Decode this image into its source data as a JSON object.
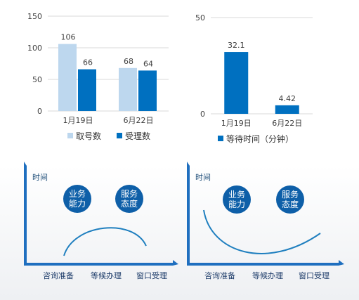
{
  "chart_data": [
    {
      "type": "bar",
      "categories": [
        "1月19日",
        "6月22日"
      ],
      "series": [
        {
          "name": "取号数",
          "values": [
            106,
            68
          ],
          "color": "#bdd7ee"
        },
        {
          "name": "受理数",
          "values": [
            66,
            64
          ],
          "color": "#0070c0"
        }
      ],
      "yticks": [
        0,
        50,
        100,
        150
      ],
      "ylim": [
        0,
        150
      ],
      "grid": true,
      "legend": "bottom"
    },
    {
      "type": "bar",
      "categories": [
        "1月19日",
        "6月22日"
      ],
      "series": [
        {
          "name": "等待时间（分钟）",
          "values": [
            32.1,
            4.42
          ],
          "color": "#0070c0"
        }
      ],
      "yticks": [
        0,
        50
      ],
      "ylim": [
        0,
        50
      ],
      "grid": true,
      "legend": "bottom"
    }
  ],
  "diagrams": [
    {
      "axis_title": "时间",
      "bubbles": [
        "业务\n能力",
        "服务\n态度"
      ],
      "stages": [
        "咨询准备",
        "等候办理",
        "窗口受理"
      ],
      "curve": "frown"
    },
    {
      "axis_title": "时间",
      "bubbles": [
        "业务\n能力",
        "服务\n态度"
      ],
      "stages": [
        "咨询准备",
        "等候办理",
        "窗口受理"
      ],
      "curve": "smile"
    }
  ],
  "colors": {
    "dark_blue": "#0070c0",
    "light_blue": "#bdd7ee",
    "frame_blue": "#1f6fbf",
    "bubble": "#0e5fa8"
  }
}
